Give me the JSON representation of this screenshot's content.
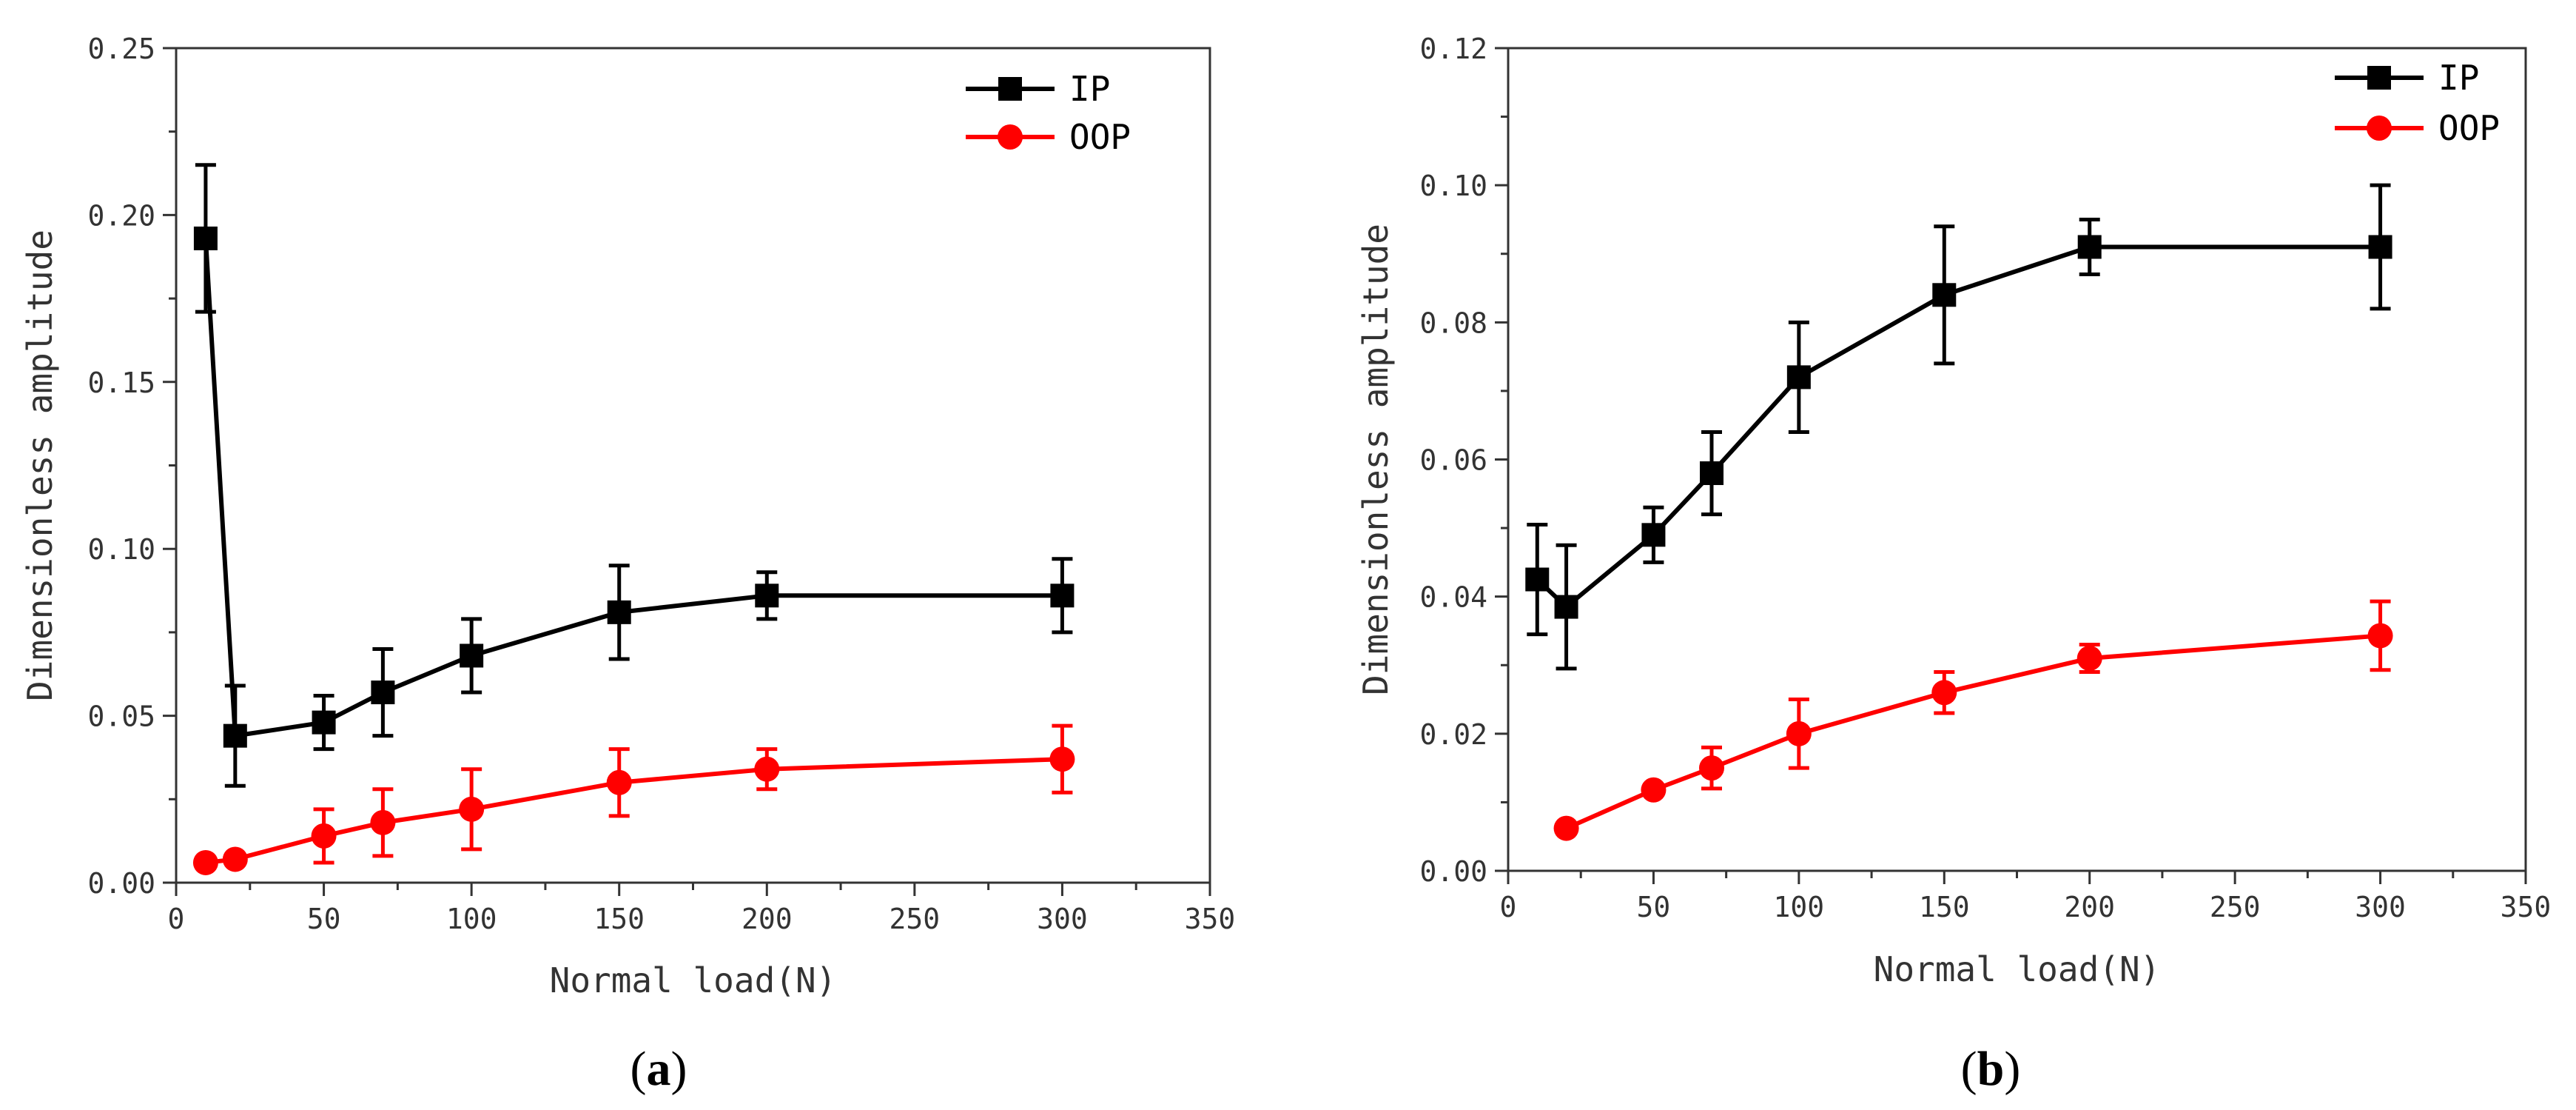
{
  "colors": {
    "IP": "#000000",
    "OOP": "#ff0000",
    "axis": "#333333"
  },
  "chart_data": [
    {
      "panel": "a",
      "panel_label": {
        "open": "(",
        "letter": "a",
        "close": ")"
      },
      "type": "line",
      "xlabel": "Normal load(N)",
      "ylabel": "Dimensionless amplitude",
      "xlim": [
        0,
        350
      ],
      "ylim": [
        0,
        0.25
      ],
      "xticks": [
        0,
        50,
        100,
        150,
        200,
        250,
        300,
        350
      ],
      "xtick_labels": [
        "0",
        "50",
        "100",
        "150",
        "200",
        "250",
        "300",
        "350"
      ],
      "yticks": [
        0,
        0.05,
        0.1,
        0.15,
        0.2,
        0.25
      ],
      "ytick_labels": [
        "0.00",
        "0.05",
        "0.10",
        "0.15",
        "0.20",
        "0.25"
      ],
      "legend_position": "top-right",
      "series": [
        {
          "name": "IP",
          "color": "#000000",
          "marker": "square",
          "x": [
            10,
            20,
            50,
            70,
            100,
            150,
            200,
            300
          ],
          "y": [
            0.193,
            0.044,
            0.048,
            0.057,
            0.068,
            0.081,
            0.086,
            0.086
          ],
          "err": [
            0.022,
            0.015,
            0.008,
            0.013,
            0.011,
            0.014,
            0.007,
            0.011
          ]
        },
        {
          "name": "OOP",
          "color": "#ff0000",
          "marker": "circle",
          "x": [
            10,
            20,
            50,
            70,
            100,
            150,
            200,
            300
          ],
          "y": [
            0.006,
            0.007,
            0.014,
            0.018,
            0.022,
            0.03,
            0.034,
            0.037
          ],
          "err": [
            0.0,
            0.0,
            0.008,
            0.01,
            0.012,
            0.01,
            0.006,
            0.01
          ]
        }
      ]
    },
    {
      "panel": "b",
      "panel_label": {
        "open": "(",
        "letter": "b",
        "close": ")"
      },
      "type": "line",
      "xlabel": "Normal load(N)",
      "ylabel": "Dimensionless amplitude",
      "xlim": [
        0,
        350
      ],
      "ylim": [
        0,
        0.12
      ],
      "xticks": [
        0,
        50,
        100,
        150,
        200,
        250,
        300,
        350
      ],
      "xtick_labels": [
        "0",
        "50",
        "100",
        "150",
        "200",
        "250",
        "300",
        "350"
      ],
      "yticks": [
        0,
        0.02,
        0.04,
        0.06,
        0.08,
        0.1,
        0.12
      ],
      "ytick_labels": [
        "0.00",
        "0.02",
        "0.04",
        "0.06",
        "0.08",
        "0.10",
        "0.12"
      ],
      "legend_position": "top-right",
      "series": [
        {
          "name": "IP",
          "color": "#000000",
          "marker": "square",
          "x": [
            10,
            20,
            50,
            70,
            100,
            150,
            200,
            300
          ],
          "y": [
            0.0425,
            0.0385,
            0.049,
            0.058,
            0.072,
            0.084,
            0.091,
            0.091
          ],
          "err": [
            0.008,
            0.009,
            0.004,
            0.006,
            0.008,
            0.01,
            0.004,
            0.009
          ]
        },
        {
          "name": "OOP",
          "color": "#ff0000",
          "marker": "circle",
          "x": [
            20,
            50,
            70,
            100,
            150,
            200,
            300
          ],
          "y": [
            0.0062,
            0.0118,
            0.015,
            0.02,
            0.026,
            0.031,
            0.0343
          ],
          "err": [
            0.0,
            0.0,
            0.003,
            0.005,
            0.003,
            0.002,
            0.005
          ]
        }
      ]
    }
  ]
}
